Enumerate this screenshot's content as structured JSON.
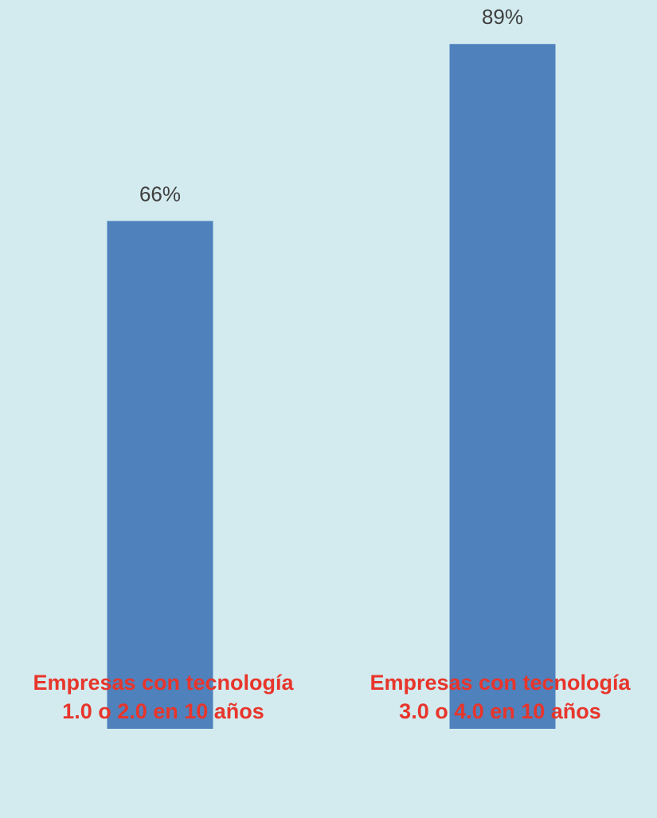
{
  "chart_data": {
    "type": "bar",
    "categories": [
      "Empresas con tecnología\n1.0 o 2.0 en 10 años",
      "Empresas con tecnología\n3.0 o 4.0 en 10 años"
    ],
    "values": [
      66,
      89
    ],
    "value_labels": [
      "66%",
      "89%"
    ],
    "color": "#4f81bd",
    "label_color": "#e8352b"
  }
}
